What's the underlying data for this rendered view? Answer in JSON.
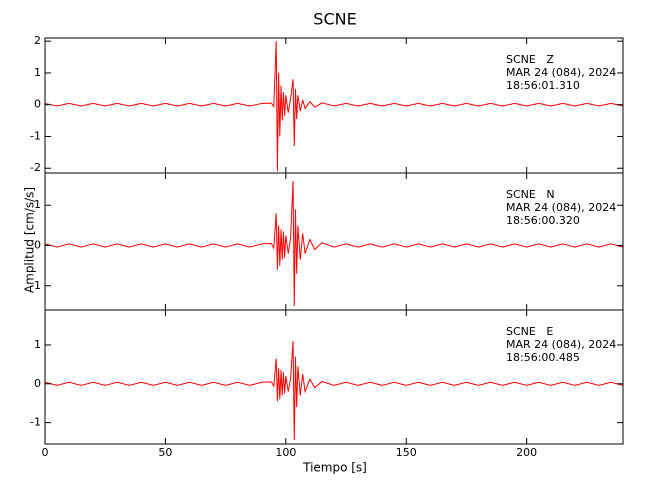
{
  "title": "SCNE",
  "x_label": "Tiempo [s]",
  "y_label": "Amplitud [cm/s/s]",
  "chart_data": [
    {
      "type": "line",
      "color": "#ff0000",
      "annotations": [
        "SCNE   Z",
        "MAR 24 (084), 2024",
        "18:56:01.310"
      ],
      "xlim": [
        0,
        240
      ],
      "xticks": [
        0,
        50,
        100,
        150,
        200
      ],
      "ylim": [
        -2.15,
        2.1
      ],
      "yticks": [
        -2,
        -1,
        0,
        1,
        2
      ],
      "x": [
        0,
        5,
        10,
        15,
        20,
        25,
        30,
        35,
        40,
        45,
        50,
        55,
        60,
        65,
        70,
        75,
        80,
        85,
        90,
        94,
        95,
        96,
        96.5,
        97,
        97.5,
        98,
        98.5,
        99,
        99.5,
        100,
        101,
        102,
        103,
        103.5,
        104,
        104.5,
        105,
        106,
        107,
        108,
        110,
        112,
        115,
        120,
        125,
        130,
        135,
        140,
        145,
        150,
        155,
        160,
        165,
        170,
        175,
        180,
        185,
        190,
        195,
        200,
        205,
        210,
        215,
        220,
        225,
        230,
        235,
        240
      ],
      "values": [
        0.04,
        -0.04,
        0.04,
        -0.04,
        0.04,
        -0.04,
        0.04,
        -0.04,
        0.04,
        -0.04,
        0.04,
        -0.04,
        0.04,
        -0.04,
        0.04,
        -0.04,
        0.04,
        -0.04,
        0.04,
        0.05,
        -0.06,
        2.0,
        -2.1,
        1.0,
        -1.0,
        0.6,
        -0.5,
        0.4,
        -0.35,
        0.3,
        -0.25,
        0.2,
        0.8,
        -1.3,
        0.5,
        -0.45,
        0.3,
        -0.2,
        0.15,
        -0.12,
        0.1,
        -0.08,
        0.06,
        -0.04,
        0.04,
        -0.04,
        0.04,
        -0.04,
        0.04,
        -0.04,
        0.04,
        -0.04,
        0.04,
        -0.04,
        0.04,
        -0.04,
        0.04,
        -0.04,
        0.04,
        -0.04,
        0.04,
        -0.04,
        0.04,
        -0.04,
        0.04,
        -0.04,
        0.04,
        -0.04
      ]
    },
    {
      "type": "line",
      "color": "#ff0000",
      "annotations": [
        "SCNE   N",
        "MAR 24 (084), 2024",
        "18:56:00.320"
      ],
      "xlim": [
        0,
        240
      ],
      "xticks": [
        0,
        50,
        100,
        150,
        200
      ],
      "ylim": [
        -1.6,
        1.8
      ],
      "yticks": [
        -1,
        0,
        1
      ],
      "x": [
        0,
        5,
        10,
        15,
        20,
        25,
        30,
        35,
        40,
        45,
        50,
        55,
        60,
        65,
        70,
        75,
        80,
        85,
        90,
        94,
        95,
        96,
        96.5,
        97,
        97.5,
        98,
        98.5,
        99,
        99.5,
        100,
        101,
        102,
        103,
        103.5,
        104,
        104.5,
        105,
        106,
        107,
        108,
        110,
        112,
        115,
        120,
        125,
        130,
        135,
        140,
        145,
        150,
        155,
        160,
        165,
        170,
        175,
        180,
        185,
        190,
        195,
        200,
        205,
        210,
        215,
        220,
        225,
        230,
        235,
        240
      ],
      "values": [
        0.04,
        -0.04,
        0.04,
        -0.04,
        0.04,
        -0.04,
        0.04,
        -0.04,
        0.04,
        -0.04,
        0.04,
        -0.04,
        0.04,
        -0.04,
        0.04,
        -0.04,
        0.04,
        -0.04,
        0.04,
        0.05,
        -0.06,
        0.8,
        -0.6,
        0.5,
        -0.5,
        0.4,
        -0.35,
        0.35,
        -0.3,
        0.25,
        -0.2,
        0.2,
        1.6,
        -1.5,
        0.9,
        -0.7,
        0.5,
        -0.35,
        0.3,
        -0.2,
        0.15,
        -0.1,
        0.07,
        -0.04,
        0.04,
        -0.04,
        0.04,
        -0.04,
        0.04,
        -0.04,
        0.04,
        -0.04,
        0.04,
        -0.04,
        0.04,
        -0.04,
        0.04,
        -0.04,
        0.04,
        -0.04,
        0.04,
        -0.04,
        0.04,
        -0.04,
        0.04,
        -0.04,
        0.04,
        -0.04
      ]
    },
    {
      "type": "line",
      "color": "#ff0000",
      "annotations": [
        "SCNE   E",
        "MAR 24 (084), 2024",
        "18:56:00.485"
      ],
      "xlim": [
        0,
        240
      ],
      "xticks": [
        0,
        50,
        100,
        150,
        200
      ],
      "ylim": [
        -1.55,
        1.9
      ],
      "yticks": [
        -1,
        0,
        1
      ],
      "x": [
        0,
        5,
        10,
        15,
        20,
        25,
        30,
        35,
        40,
        45,
        50,
        55,
        60,
        65,
        70,
        75,
        80,
        85,
        90,
        94,
        95,
        96,
        96.5,
        97,
        97.5,
        98,
        98.5,
        99,
        99.5,
        100,
        101,
        102,
        103,
        103.5,
        104,
        104.5,
        105,
        106,
        107,
        108,
        110,
        112,
        115,
        120,
        125,
        130,
        135,
        140,
        145,
        150,
        155,
        160,
        165,
        170,
        175,
        180,
        185,
        190,
        195,
        200,
        205,
        210,
        215,
        220,
        225,
        230,
        235,
        240
      ],
      "values": [
        0.04,
        -0.04,
        0.04,
        -0.04,
        0.04,
        -0.04,
        0.04,
        -0.04,
        0.04,
        -0.04,
        0.04,
        -0.04,
        0.04,
        -0.04,
        0.04,
        -0.04,
        0.04,
        -0.04,
        0.04,
        0.05,
        -0.06,
        0.65,
        -0.45,
        0.4,
        -0.4,
        0.35,
        -0.3,
        0.3,
        -0.25,
        0.2,
        -0.2,
        0.15,
        1.1,
        -1.45,
        0.7,
        -0.6,
        0.45,
        -0.3,
        0.25,
        -0.2,
        0.12,
        -0.1,
        0.06,
        -0.04,
        0.04,
        -0.04,
        0.04,
        -0.04,
        0.04,
        -0.04,
        0.04,
        -0.04,
        0.04,
        -0.04,
        0.04,
        -0.04,
        0.04,
        -0.04,
        0.04,
        -0.04,
        0.04,
        -0.04,
        0.04,
        -0.04,
        0.04,
        -0.04,
        0.04,
        -0.04
      ]
    }
  ]
}
